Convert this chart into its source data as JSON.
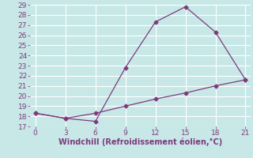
{
  "x_upper": [
    0,
    3,
    6,
    9,
    12,
    15,
    18,
    21
  ],
  "y_upper": [
    18.3,
    17.8,
    17.5,
    22.8,
    27.3,
    28.8,
    26.3,
    21.6
  ],
  "x_lower": [
    0,
    3,
    6,
    9,
    12,
    15,
    18,
    21
  ],
  "y_lower": [
    18.3,
    17.8,
    18.3,
    19.0,
    19.7,
    20.3,
    21.0,
    21.6
  ],
  "line_color": "#7b3b7b",
  "marker": "D",
  "markersize": 2.5,
  "linewidth": 0.9,
  "xlabel": "Windchill (Refroidissement éolien,°C)",
  "xlim": [
    -0.5,
    21.5
  ],
  "ylim": [
    17,
    29
  ],
  "xticks": [
    0,
    3,
    6,
    9,
    12,
    15,
    18,
    21
  ],
  "yticks": [
    17,
    18,
    19,
    20,
    21,
    22,
    23,
    24,
    25,
    26,
    27,
    28,
    29
  ],
  "bg_color": "#c8e8e8",
  "grid_color": "#b0d4d4",
  "tick_label_color": "#7b3b7b",
  "xlabel_color": "#7b3b7b",
  "xlabel_fontsize": 7,
  "tick_fontsize": 6.5
}
